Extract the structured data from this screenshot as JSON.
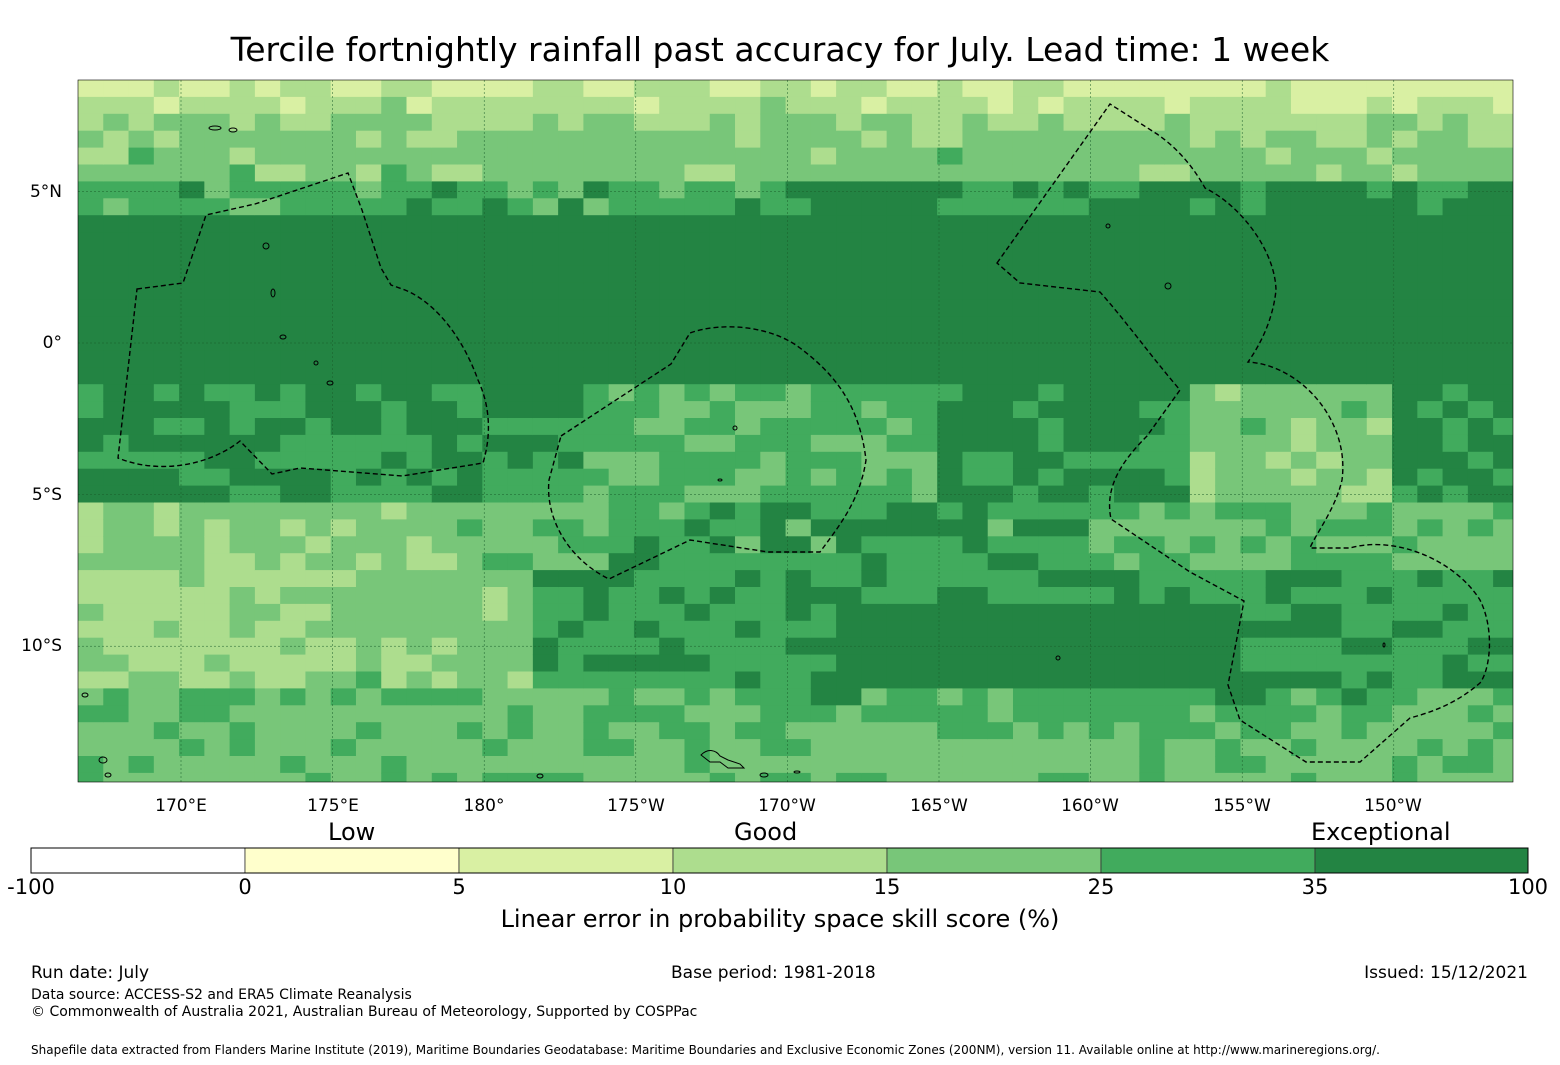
{
  "title": "Tercile fortnightly rainfall past accuracy for July. Lead time: 1 week",
  "map": {
    "lat_labels": [
      "5°N",
      "0°",
      "5°S",
      "10°S"
    ],
    "lon_labels": [
      "170°E",
      "175°E",
      "180°",
      "175°W",
      "170°W",
      "165°W",
      "160°W",
      "155°W",
      "150°W"
    ],
    "colors": {
      "c1": "#ffffff",
      "c2": "#ffffcc",
      "c3": "#d9f0a3",
      "c4": "#addd8e",
      "c5": "#78c679",
      "c6": "#41ab5d",
      "c7": "#238443"
    }
  },
  "colorbar": {
    "category_low": "Low",
    "category_good": "Good",
    "category_exceptional": "Exceptional",
    "ticks": [
      "-100",
      "0",
      "5",
      "10",
      "15",
      "25",
      "35",
      "100"
    ],
    "colors": [
      "#ffffff",
      "#ffffcc",
      "#d9f0a3",
      "#addd8e",
      "#78c679",
      "#41ab5d",
      "#238443"
    ],
    "label": "Linear error in probability space skill score (%)"
  },
  "footer": {
    "run_date": "Run date: July",
    "base_period": "Base period: 1981-2018",
    "issued": "Issued: 15/12/2021",
    "data_source": "Data source: ACCESS-S2 and ERA5 Climate Reanalysis",
    "copyright": "© Commonwealth of Australia 2021, Australian Bureau of Meteorology, Supported by COSPPac",
    "shapefile": "Shapefile data extracted from Flanders Marine Institute (2019), Maritime Boundaries Geodatabase: Maritime Boundaries and Exclusive Economic Zones (200NM), version 11. Available online at http://www.marineregions.org/."
  }
}
